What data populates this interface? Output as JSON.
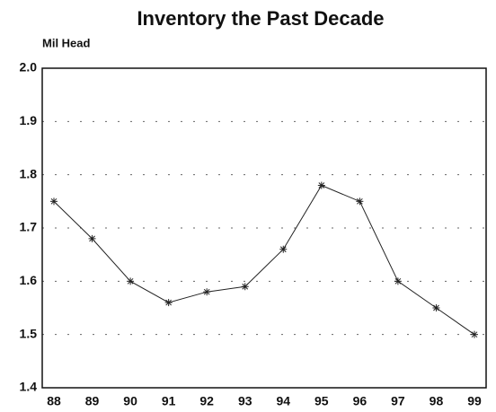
{
  "chart_data": {
    "type": "line",
    "title": "Inventory the Past Decade",
    "y_label": "Mil Head",
    "categories": [
      "88",
      "89",
      "90",
      "91",
      "92",
      "93",
      "94",
      "95",
      "96",
      "97",
      "98",
      "99"
    ],
    "series": [
      {
        "name": "Inventory",
        "color": "#222222",
        "values": [
          1.75,
          1.68,
          1.6,
          1.56,
          1.58,
          1.59,
          1.66,
          1.78,
          1.75,
          1.6,
          1.55,
          1.5
        ]
      }
    ],
    "ylim": [
      1.4,
      2.0
    ],
    "yticks": [
      1.4,
      1.5,
      1.6,
      1.7,
      1.8,
      1.9,
      {
        "value": 2.0,
        "label": "2.0"
      }
    ],
    "grid": true
  }
}
